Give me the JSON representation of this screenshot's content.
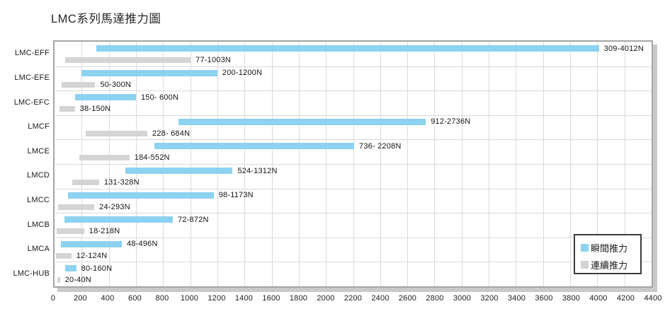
{
  "title": "LMC系列馬達推力圖",
  "legend": {
    "items": [
      {
        "label": "瞬間推力",
        "color": "#8CD2F1"
      },
      {
        "label": "連續推力",
        "color": "#D4D4D4"
      }
    ]
  },
  "colors": {
    "instant_bar": "#8CD2F1",
    "continuous_bar": "#D4D4D4",
    "gridline": "#DBDBDB",
    "plot_border": "#A5A5A5",
    "plot_shadow": "#C9C9C9",
    "text": "#1A1A1A"
  },
  "chart_data": {
    "type": "bar",
    "orientation": "horizontal-range",
    "title": "LMC系列馬達推力圖",
    "grid": true,
    "legend_position": "bottom-right",
    "categories": [
      "LMC-EFF",
      "LMC-EFE",
      "LMC-EFC",
      "LMCF",
      "LMCE",
      "LMCD",
      "LMCC",
      "LMCB",
      "LMCA",
      "LMC-HUB"
    ],
    "series": [
      {
        "name": "瞬間推力",
        "color": "#8CD2F1",
        "ranges": [
          [
            309,
            4012
          ],
          [
            200,
            1200
          ],
          [
            150,
            600
          ],
          [
            912,
            2736
          ],
          [
            736,
            2208
          ],
          [
            524,
            1312
          ],
          [
            98,
            1173
          ],
          [
            72,
            872
          ],
          [
            48,
            496
          ],
          [
            80,
            160
          ]
        ],
        "labels": [
          "309-4012N",
          "200-1200N",
          "150- 600N",
          "912-2736N",
          "736- 2208N",
          "524-1312N",
          "98-1173N",
          "72-872N",
          "48-496N",
          "80-160N"
        ]
      },
      {
        "name": "連續推力",
        "color": "#D4D4D4",
        "ranges": [
          [
            77,
            1003
          ],
          [
            50,
            300
          ],
          [
            38,
            150
          ],
          [
            228,
            684
          ],
          [
            184,
            552
          ],
          [
            131,
            328
          ],
          [
            24,
            293
          ],
          [
            18,
            218
          ],
          [
            12,
            124
          ],
          [
            20,
            40
          ]
        ],
        "labels": [
          "77-1003N",
          "50-300N",
          "38-150N",
          "228- 684N",
          "184-552N",
          "131-328N",
          "24-293N",
          "18-218N",
          "12-124N",
          "20-40N"
        ]
      }
    ],
    "xlim": [
      0,
      4400
    ],
    "xtick_step": 200,
    "xticks": [
      0,
      200,
      400,
      600,
      800,
      1000,
      1200,
      1400,
      1600,
      1800,
      2000,
      2200,
      2400,
      2600,
      2800,
      3000,
      3200,
      3400,
      3600,
      3800,
      4000,
      4200,
      4400
    ],
    "unit": "N"
  }
}
